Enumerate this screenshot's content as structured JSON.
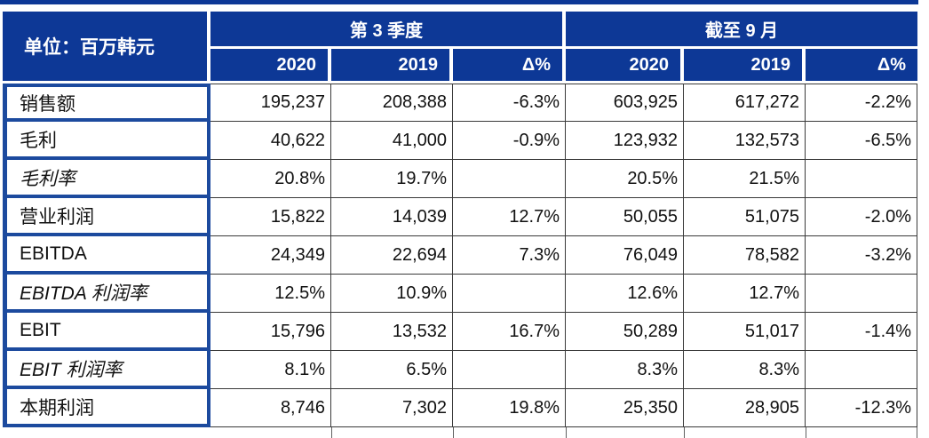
{
  "chart_data": {
    "type": "table",
    "unit_label": "单位：百万韩元",
    "column_groups": [
      {
        "label": "第 3 季度",
        "sub_columns": [
          "2020",
          "2019",
          "Δ%"
        ]
      },
      {
        "label": "截至 9 月",
        "sub_columns": [
          "2020",
          "2019",
          "Δ%"
        ]
      }
    ],
    "rows": [
      {
        "label": "销售额",
        "italic": false,
        "values": [
          "195,237",
          "208,388",
          "-6.3%",
          "603,925",
          "617,272",
          "-2.2%"
        ]
      },
      {
        "label": "毛利",
        "italic": false,
        "values": [
          "40,622",
          "41,000",
          "-0.9%",
          "123,932",
          "132,573",
          "-6.5%"
        ]
      },
      {
        "label": "毛利率",
        "italic": true,
        "values": [
          "20.8%",
          "19.7%",
          "",
          "20.5%",
          "21.5%",
          ""
        ]
      },
      {
        "label": "营业利润",
        "italic": false,
        "values": [
          "15,822",
          "14,039",
          "12.7%",
          "50,055",
          "51,075",
          "-2.0%"
        ]
      },
      {
        "label": "EBITDA",
        "italic": false,
        "values": [
          "24,349",
          "22,694",
          "7.3%",
          "76,049",
          "78,582",
          "-3.2%"
        ]
      },
      {
        "label": "EBITDA 利润率",
        "italic": true,
        "values": [
          "12.5%",
          "10.9%",
          "",
          "12.6%",
          "12.7%",
          ""
        ]
      },
      {
        "label": "EBIT",
        "italic": false,
        "values": [
          "15,796",
          "13,532",
          "16.7%",
          "50,289",
          "51,017",
          "-1.4%"
        ]
      },
      {
        "label": "EBIT 利润率",
        "italic": true,
        "values": [
          "8.1%",
          "6.5%",
          "",
          "8.3%",
          "8.3%",
          ""
        ]
      },
      {
        "label": "本期利润",
        "italic": false,
        "values": [
          "8,746",
          "7,302",
          "19.8%",
          "25,350",
          "28,905",
          "-12.3%"
        ]
      }
    ]
  },
  "colors": {
    "header_bg": "#0d3896",
    "header_text": "#ffffff",
    "label_border": "#1c4a9e",
    "grid_line": "#3a3a3a",
    "body_text": "#111111"
  }
}
